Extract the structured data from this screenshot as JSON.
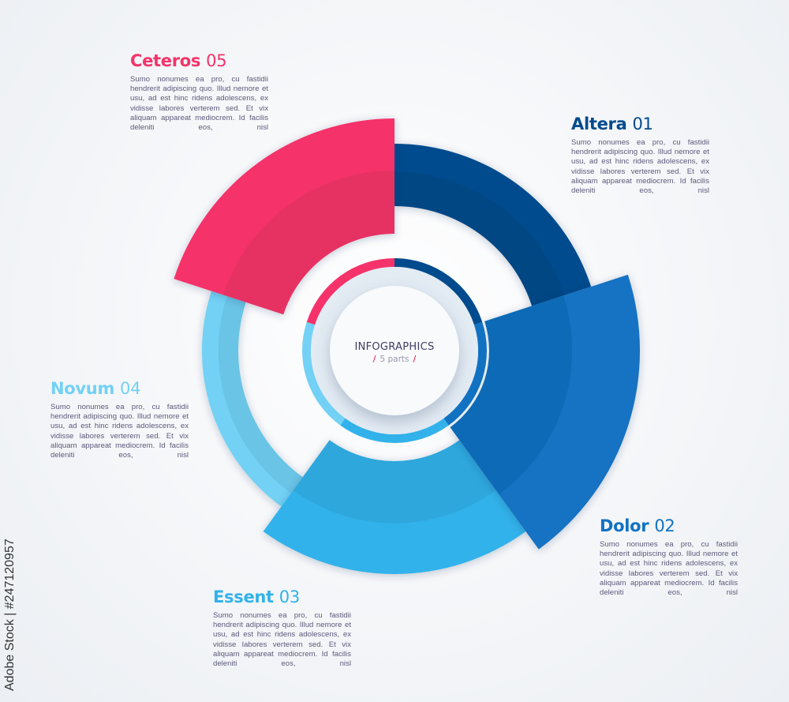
{
  "center": {
    "title": "INFOGRAPHICS",
    "subtitle": "5 parts",
    "slash": "/"
  },
  "segments": [
    {
      "name": "Altera",
      "number": "01",
      "color": "#004b8d",
      "text": "Sumo nonumes ea pro, cu fastidii hendrerit adipiscing quo. Illud nemore et usu, ad est hinc ridens adolescens, ex vidisse labores verterem sed. Et vix aliquam appareat mediocrem. Id facilis deleniti eos, nisl"
    },
    {
      "name": "Dolor",
      "number": "02",
      "color": "#1272c2",
      "text": "Sumo nonumes ea pro, cu fastidii hendrerit adipiscing quo. Illud nemore et usu, ad est hinc ridens adolescens, ex vidisse labores verterem sed. Et vix aliquam appareat mediocrem. Id facilis deleniti eos, nisl"
    },
    {
      "name": "Essent",
      "number": "03",
      "color": "#32b2ea",
      "text": "Sumo nonumes ea pro, cu fastidii hendrerit adipiscing quo. Illud nemore et usu, ad est hinc ridens adolescens, ex vidisse labores verterem sed. Et vix aliquam appareat mediocrem. Id facilis deleniti eos, nisl"
    },
    {
      "name": "Novum",
      "number": "04",
      "color": "#72d1f5",
      "text": "Sumo nonumes ea pro, cu fastidii hendrerit adipiscing quo. Illud nemore et usu, ad est hinc ridens adolescens, ex vidisse labores verterem sed. Et vix aliquam appareat mediocrem. Id facilis deleniti eos, nisl"
    },
    {
      "name": "Ceteros",
      "number": "05",
      "color": "#f5336a",
      "text": "Sumo nonumes ea pro, cu fastidii hendrerit adipiscing quo. Illud nemore et usu, ad est hinc ridens adolescens, ex vidisse labores verterem sed. Et vix aliquam appareat mediocrem. Id facilis deleniti eos, nisl"
    }
  ],
  "watermark": "Adobe Stock | #247120957"
}
